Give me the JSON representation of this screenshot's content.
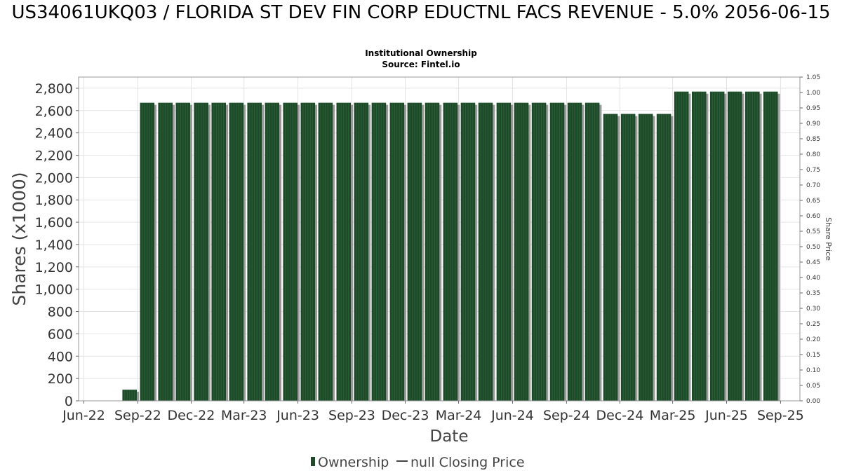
{
  "chart_data": {
    "type": "bar",
    "title": "US34061UKQ03 / FLORIDA ST DEV FIN CORP EDUCTNL FACS REVENUE - 5.0% 2056-06-15",
    "subtitle": [
      "Institutional Ownership",
      "Source: Fintel.io"
    ],
    "xlabel": "Date",
    "ylabel": "Shares (x1000)",
    "y2label": "Share Price",
    "ylim": [
      0,
      2900
    ],
    "y2lim": [
      0,
      1.05
    ],
    "xlim": [
      "2022-05-23",
      "2025-10-04"
    ],
    "grid": true,
    "y_ticks": [
      0,
      200,
      400,
      600,
      800,
      1000,
      1200,
      1400,
      1600,
      1800,
      2000,
      2200,
      2400,
      2600,
      2800
    ],
    "y_tick_labels": [
      "0",
      "200",
      "400",
      "600",
      "800",
      "1,000",
      "1,200",
      "1,400",
      "1,600",
      "1,800",
      "2,000",
      "2,200",
      "2,400",
      "2,600",
      "2,800"
    ],
    "y2_ticks": [
      0,
      0.05,
      0.1,
      0.15,
      0.2,
      0.25,
      0.3,
      0.35,
      0.4,
      0.45,
      0.5,
      0.55,
      0.6,
      0.65,
      0.7,
      0.75,
      0.8,
      0.85,
      0.9,
      0.95,
      1.0,
      1.05
    ],
    "y2_tick_labels": [
      "0.00",
      "0.05",
      "0.10",
      "0.15",
      "0.20",
      "0.25",
      "0.30",
      "0.35",
      "0.40",
      "0.45",
      "0.50",
      "0.55",
      "0.60",
      "0.65",
      "0.70",
      "0.75",
      "0.80",
      "0.85",
      "0.90",
      "0.95",
      "1.00",
      "1.05"
    ],
    "x_ticks": [
      "2022-06-01",
      "2022-09-01",
      "2022-12-01",
      "2023-03-01",
      "2023-06-01",
      "2023-09-01",
      "2023-12-01",
      "2024-03-01",
      "2024-06-01",
      "2024-09-01",
      "2024-12-01",
      "2025-03-01",
      "2025-06-01",
      "2025-09-01"
    ],
    "x_tick_labels": [
      "Jun-22",
      "Sep-22",
      "Dec-22",
      "Mar-23",
      "Jun-23",
      "Sep-23",
      "Dec-23",
      "Mar-24",
      "Jun-24",
      "Sep-24",
      "Dec-24",
      "Mar-25",
      "Jun-25",
      "Sep-25"
    ],
    "legend_position": "bottom",
    "series": [
      {
        "name": "Ownership",
        "type": "bar",
        "color": "#1f4a2a",
        "x": [
          "2022-08-18",
          "2022-09-17",
          "2022-10-18",
          "2022-11-17",
          "2022-12-18",
          "2023-01-17",
          "2023-02-16",
          "2023-03-19",
          "2023-04-18",
          "2023-05-19",
          "2023-06-18",
          "2023-07-18",
          "2023-08-18",
          "2023-09-17",
          "2023-10-17",
          "2023-11-17",
          "2023-12-17",
          "2024-01-16",
          "2024-02-16",
          "2024-03-17",
          "2024-04-16",
          "2024-05-17",
          "2024-06-16",
          "2024-07-16",
          "2024-08-16",
          "2024-09-15",
          "2024-10-15",
          "2024-11-15",
          "2024-12-15",
          "2025-01-14",
          "2025-02-14",
          "2025-03-16",
          "2025-04-15",
          "2025-05-16",
          "2025-06-15",
          "2025-07-15",
          "2025-08-15"
        ],
        "values": [
          100,
          2670,
          2670,
          2670,
          2670,
          2670,
          2670,
          2670,
          2670,
          2670,
          2670,
          2670,
          2670,
          2670,
          2670,
          2670,
          2670,
          2670,
          2670,
          2670,
          2670,
          2670,
          2670,
          2670,
          2670,
          2670,
          2670,
          2570,
          2570,
          2570,
          2570,
          2770,
          2770,
          2770,
          2770,
          2770,
          2770
        ]
      },
      {
        "name": "null Closing Price",
        "type": "line",
        "color": "#444444",
        "values": []
      }
    ]
  }
}
